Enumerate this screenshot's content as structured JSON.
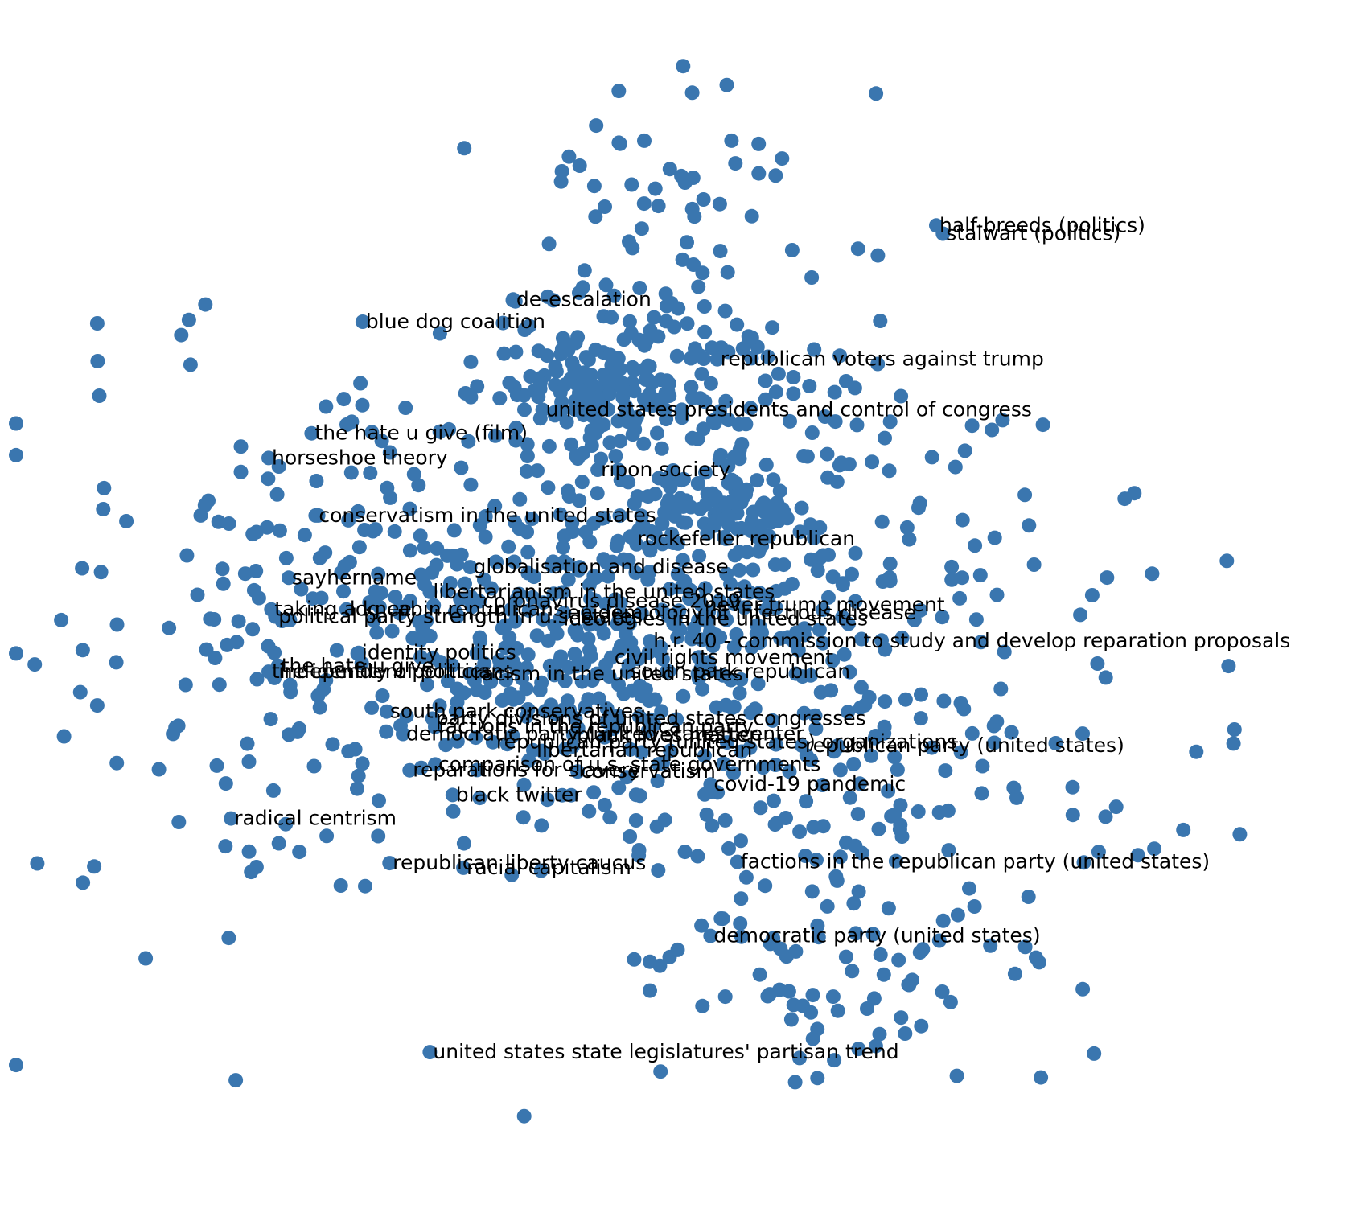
{
  "chart_data": {
    "type": "scatter",
    "title": "",
    "xlabel": "",
    "ylabel": "",
    "axes_visible": false,
    "grid": false,
    "xlim": [
      0,
      1000
    ],
    "ylim": [
      0,
      1000
    ],
    "point_color": "#3a76af",
    "point_count_estimate": 1100,
    "scatter_seed": 7,
    "point_clusters": [
      {
        "cx": 470,
        "cy": 520,
        "sx": 140,
        "sy": 85,
        "n": 520
      },
      {
        "cx": 430,
        "cy": 690,
        "sx": 40,
        "sy": 20,
        "n": 110
      },
      {
        "cx": 440,
        "cy": 440,
        "sx": 70,
        "sy": 25,
        "n": 60
      },
      {
        "cx": 530,
        "cy": 590,
        "sx": 40,
        "sy": 18,
        "n": 60
      },
      {
        "cx": 500,
        "cy": 720,
        "sx": 85,
        "sy": 50,
        "n": 120
      },
      {
        "cx": 490,
        "cy": 870,
        "sx": 55,
        "sy": 55,
        "n": 40
      },
      {
        "cx": 610,
        "cy": 350,
        "sx": 110,
        "sy": 65,
        "n": 120
      },
      {
        "cx": 610,
        "cy": 200,
        "sx": 85,
        "sy": 45,
        "n": 80
      },
      {
        "cx": 180,
        "cy": 460,
        "sx": 110,
        "sy": 140,
        "n": 120
      }
    ],
    "labels": [
      {
        "text": "half-breeds (politics)",
        "x": 685,
        "y": 832
      },
      {
        "text": "stalwart (politics)",
        "x": 690,
        "y": 825
      },
      {
        "text": "de-escalation",
        "x": 370,
        "y": 769
      },
      {
        "text": "blue dog coalition",
        "x": 258,
        "y": 750
      },
      {
        "text": "republican voters against trump",
        "x": 522,
        "y": 718
      },
      {
        "text": "united states presidents and control of congress",
        "x": 392,
        "y": 675
      },
      {
        "text": "the hate u give (film)",
        "x": 220,
        "y": 655
      },
      {
        "text": "horseshoe theory",
        "x": 188,
        "y": 634
      },
      {
        "text": "ripon society",
        "x": 433,
        "y": 624
      },
      {
        "text": "conservatism in the united states",
        "x": 223,
        "y": 585
      },
      {
        "text": "rockefeller republican",
        "x": 460,
        "y": 565
      },
      {
        "text": "globalisation and disease",
        "x": 338,
        "y": 541
      },
      {
        "text": "sayhername",
        "x": 203,
        "y": 532
      },
      {
        "text": "libertarianism in the united states",
        "x": 308,
        "y": 520
      },
      {
        "text": "never trump movement",
        "x": 510,
        "y": 509
      },
      {
        "text": "coronavirus disease 2019",
        "x": 345,
        "y": 512
      },
      {
        "text": "taking a knee",
        "x": 190,
        "y": 505
      },
      {
        "text": "log cabin republicans",
        "x": 246,
        "y": 505
      },
      {
        "text": "political party strength in u.s. states",
        "x": 193,
        "y": 499
      },
      {
        "text": "epidemiology of infectious disease",
        "x": 408,
        "y": 502
      },
      {
        "text": "ideologies in the united states",
        "x": 405,
        "y": 497
      },
      {
        "text": "h.r. 40 - commission to study and develop reparation proposals",
        "x": 472,
        "y": 478
      },
      {
        "text": "identity politics",
        "x": 255,
        "y": 468
      },
      {
        "text": "civil rights movement",
        "x": 443,
        "y": 464
      },
      {
        "text": "the hate u give",
        "x": 195,
        "y": 457
      },
      {
        "text": "the identity of politics",
        "x": 188,
        "y": 452
      },
      {
        "text": "independent politicians",
        "x": 193,
        "y": 452
      },
      {
        "text": "south park republican",
        "x": 455,
        "y": 452
      },
      {
        "text": "racism in the united states",
        "x": 338,
        "y": 450
      },
      {
        "text": "south park conservatives",
        "x": 276,
        "y": 418
      },
      {
        "text": "party divisions of united states congresses",
        "x": 310,
        "y": 412
      },
      {
        "text": "factions in the republican party",
        "x": 312,
        "y": 405
      },
      {
        "text": "democratic party (united states) center",
        "x": 288,
        "y": 399
      },
      {
        "text": "black lives matter",
        "x": 415,
        "y": 398
      },
      {
        "text": "republican party (united states) organizations",
        "x": 355,
        "y": 392
      },
      {
        "text": "republican party (united states)",
        "x": 585,
        "y": 389
      },
      {
        "text": "libertarian republican",
        "x": 385,
        "y": 385
      },
      {
        "text": "comparison of u.s. state governments",
        "x": 312,
        "y": 373
      },
      {
        "text": "reparations for slavery",
        "x": 293,
        "y": 368
      },
      {
        "text": "conservatism",
        "x": 418,
        "y": 367
      },
      {
        "text": "covid-19 pandemic",
        "x": 517,
        "y": 356
      },
      {
        "text": "black twitter",
        "x": 325,
        "y": 347
      },
      {
        "text": "radical centrism",
        "x": 160,
        "y": 327
      },
      {
        "text": "republican liberty caucus",
        "x": 278,
        "y": 289
      },
      {
        "text": "racial capitalism",
        "x": 333,
        "y": 285
      },
      {
        "text": "factions in the republican party (united states)",
        "x": 537,
        "y": 290
      },
      {
        "text": "democratic party (united states)",
        "x": 517,
        "y": 227
      },
      {
        "text": "united states state legislatures' partisan trend",
        "x": 308,
        "y": 128
      }
    ]
  }
}
